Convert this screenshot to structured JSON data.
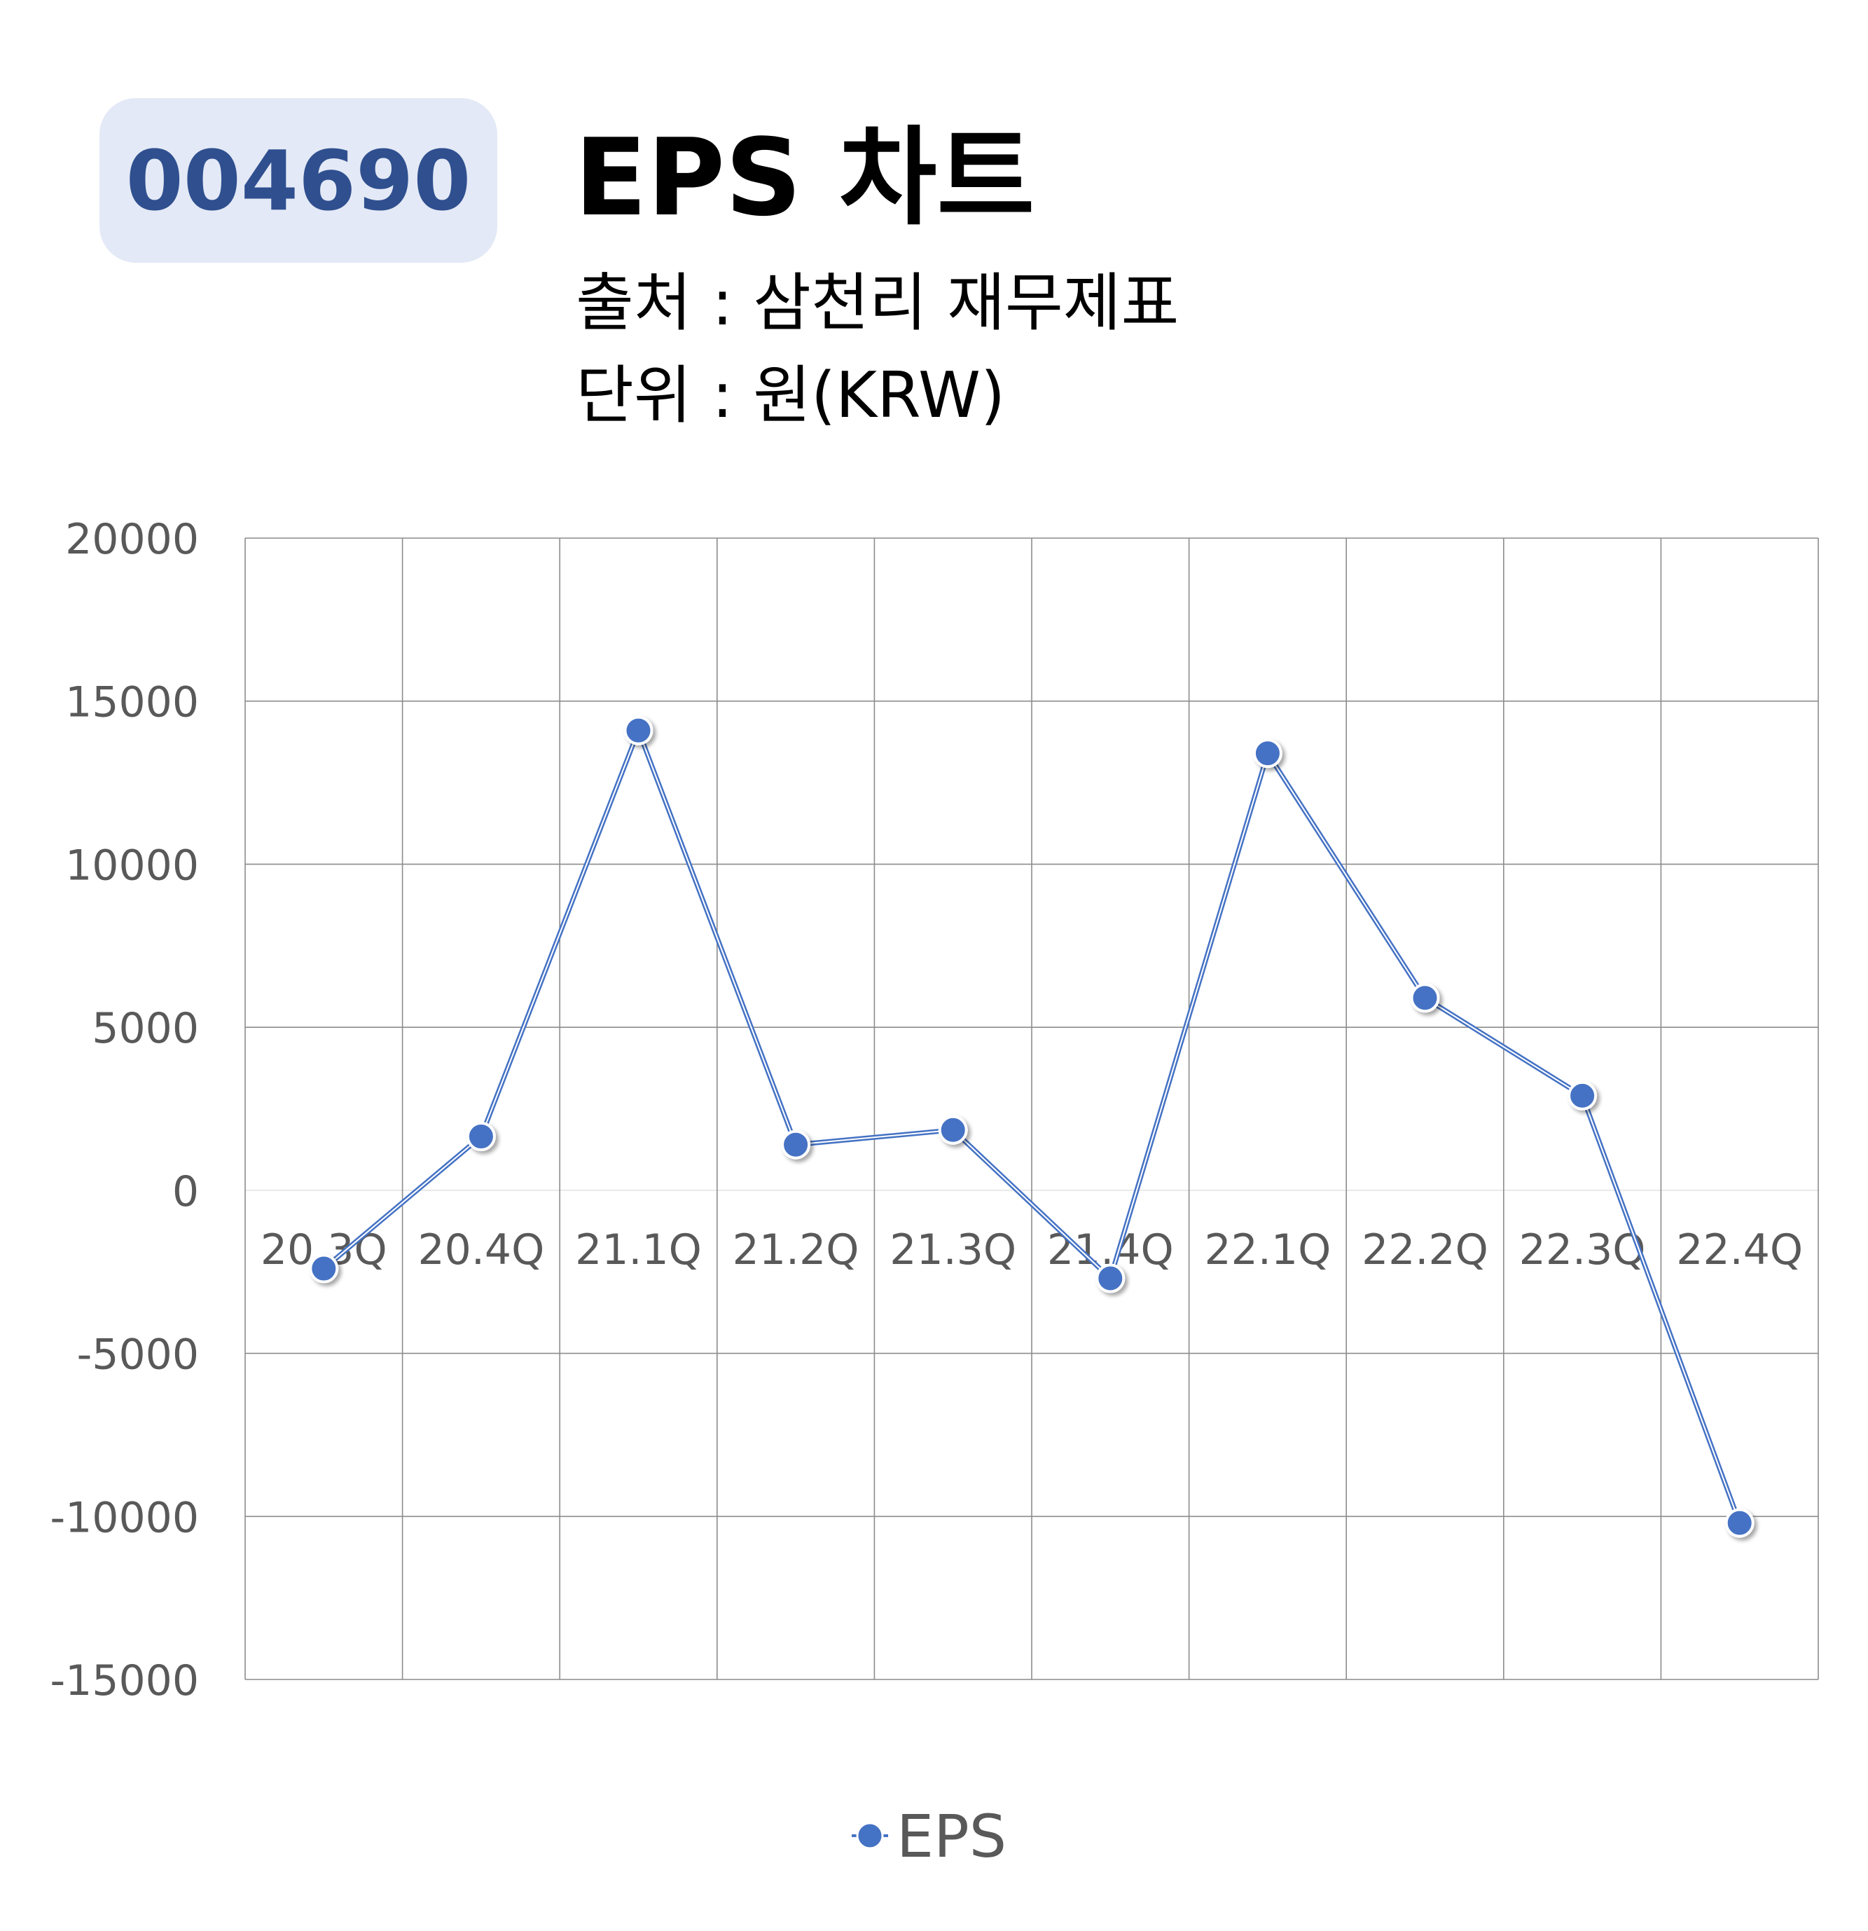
{
  "header": {
    "code": "004690",
    "title": "EPS 차트",
    "source": "출처 : 삼천리 재무제표",
    "unit": "단위 : 원(KRW)"
  },
  "chart_data": {
    "type": "line",
    "categories": [
      "20.3Q",
      "20.4Q",
      "21.1Q",
      "21.2Q",
      "21.3Q",
      "21.4Q",
      "22.1Q",
      "22.2Q",
      "22.3Q",
      "22.4Q"
    ],
    "series": [
      {
        "name": "EPS",
        "values": [
          -2400,
          1650,
          14100,
          1400,
          1850,
          -2700,
          13400,
          5900,
          2900,
          -10200
        ],
        "color": "#4472c4"
      }
    ],
    "ylim": [
      -15000,
      20000
    ],
    "yticks": [
      20000,
      15000,
      10000,
      5000,
      0,
      -5000,
      -10000,
      -15000
    ],
    "ytick_labels": [
      "20000",
      "15000",
      "10000",
      "5000",
      "0",
      "-5000",
      "-10000",
      "-15000"
    ],
    "grid": true,
    "legend": "bottom-center",
    "title": "",
    "xlabel": "",
    "ylabel": ""
  }
}
